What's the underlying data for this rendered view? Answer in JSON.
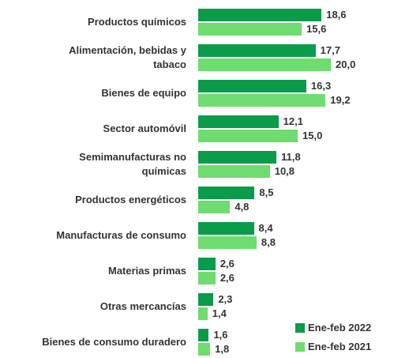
{
  "chart_data": {
    "type": "bar",
    "orientation": "horizontal",
    "categories": [
      "Productos químicos",
      "Alimentación, bebidas y\ntabaco",
      "Bienes de equipo",
      "Sector automóvil",
      "Semimanufacturas no\nquímicas",
      "Productos energéticos",
      "Manufacturas de consumo",
      "Materias primas",
      "Otras mercancías",
      "Bienes de consumo duradero"
    ],
    "series": [
      {
        "name": "Ene-feb 2022",
        "color": "#0a9b4b",
        "values": [
          18.6,
          17.7,
          16.3,
          12.1,
          11.8,
          8.5,
          8.4,
          2.6,
          2.3,
          1.6
        ],
        "value_labels": [
          "18,6",
          "17,7",
          "16,3",
          "12,1",
          "11,8",
          "8,5",
          "8,4",
          "2,6",
          "2,3",
          "1,6"
        ]
      },
      {
        "name": "Ene-feb 2021",
        "color": "#6edc6e",
        "values": [
          15.6,
          20.0,
          19.2,
          15.0,
          10.8,
          4.8,
          8.8,
          2.6,
          1.4,
          1.8
        ],
        "value_labels": [
          "15,6",
          "20,0",
          "19,2",
          "15,0",
          "10,8",
          "4,8",
          "8,8",
          "2,6",
          "1,4",
          "1,8"
        ]
      }
    ],
    "legend": "bottom-right"
  }
}
